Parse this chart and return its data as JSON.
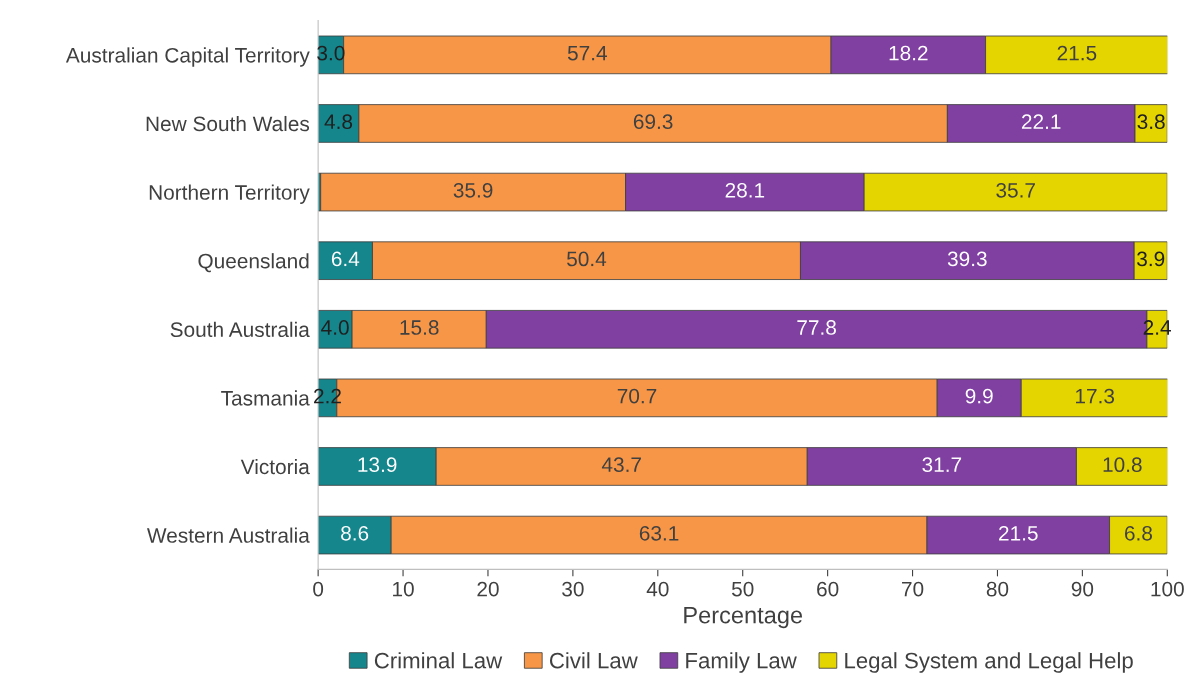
{
  "chart_data": {
    "type": "bar",
    "orientation": "horizontal",
    "stacked": true,
    "xlabel": "Percentage",
    "categories": [
      "Australian Capital Territory",
      "New South Wales",
      "Northern Territory",
      "Queensland",
      "South Australia",
      "Tasmania",
      "Victoria",
      "Western Australia"
    ],
    "series": [
      {
        "name": "Criminal Law",
        "color": "#14868c",
        "values": [
          3.0,
          4.8,
          0.3,
          6.4,
          4.0,
          2.2,
          13.9,
          8.6
        ],
        "value_labels": [
          "3.0",
          "4.8",
          null,
          "6.4",
          "4.0",
          "2.2",
          "13.9",
          "8.6"
        ]
      },
      {
        "name": "Civil Law",
        "color": "#f79646",
        "values": [
          57.4,
          69.3,
          35.9,
          50.4,
          15.8,
          70.7,
          43.7,
          63.1
        ],
        "value_labels": [
          "57.4",
          "69.3",
          "35.9",
          "50.4",
          "15.8",
          "70.7",
          "43.7",
          "63.1"
        ]
      },
      {
        "name": "Family Law",
        "color": "#8040a2",
        "values": [
          18.2,
          22.1,
          28.1,
          39.3,
          77.8,
          9.9,
          31.7,
          21.5
        ],
        "value_labels": [
          "18.2",
          "22.1",
          "28.1",
          "39.3",
          "77.8",
          "9.9",
          "31.7",
          "21.5"
        ]
      },
      {
        "name": "Legal System and Legal Help",
        "color": "#e4d400",
        "values": [
          21.5,
          3.8,
          35.7,
          3.9,
          2.4,
          17.3,
          10.8,
          6.8
        ],
        "value_labels": [
          "21.5",
          "3.8",
          "35.7",
          "3.9",
          "2.4",
          "17.3",
          "10.8",
          "6.8"
        ]
      }
    ],
    "xlim": [
      0,
      100
    ],
    "xticks": [
      0,
      10,
      20,
      30,
      40,
      50,
      60,
      70,
      80,
      90,
      100
    ],
    "grid": false,
    "legend": "bottom"
  }
}
